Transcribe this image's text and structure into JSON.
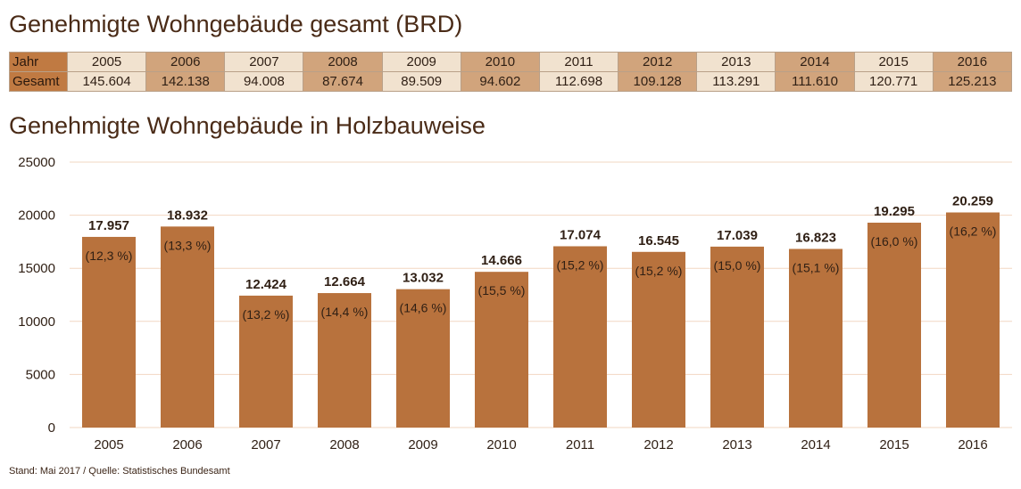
{
  "table": {
    "title": "Genehmigte Wohngebäude gesamt (BRD)",
    "row_label_1": "Jahr",
    "row_label_2": "Gesamt",
    "years": [
      "2005",
      "2006",
      "2007",
      "2008",
      "2009",
      "2010",
      "2011",
      "2012",
      "2013",
      "2014",
      "2015",
      "2016"
    ],
    "totals": [
      "145.604",
      "142.138",
      "94.008",
      "87.674",
      "89.509",
      "94.602",
      "112.698",
      "109.128",
      "113.291",
      "111.610",
      "120.771",
      "125.213"
    ]
  },
  "chart_data": {
    "type": "bar",
    "title": "Genehmigte Wohngebäude in Holzbauweise",
    "categories": [
      "2005",
      "2006",
      "2007",
      "2008",
      "2009",
      "2010",
      "2011",
      "2012",
      "2013",
      "2014",
      "2015",
      "2016"
    ],
    "values": [
      17957,
      18932,
      12424,
      12664,
      13032,
      14666,
      17074,
      16545,
      17039,
      16823,
      19295,
      20259
    ],
    "value_labels": [
      "17.957",
      "18.932",
      "12.424",
      "12.664",
      "13.032",
      "14.666",
      "17.074",
      "16.545",
      "17.039",
      "16.823",
      "19.295",
      "20.259"
    ],
    "share_labels": [
      "(12,3 %)",
      "(13,3 %)",
      "(13,2 %)",
      "(14,4 %)",
      "(14,6 %)",
      "(15,5 %)",
      "(15,2 %)",
      "(15,2 %)",
      "(15,0 %)",
      "(15,1 %)",
      "(16,0 %)",
      "(16,2 %)"
    ],
    "yticks": [
      "0",
      "5000",
      "10000",
      "15000",
      "20000",
      "25000"
    ],
    "ylim": [
      0,
      25000
    ],
    "grid": true,
    "bar_color": "#b8723d",
    "grid_color": "#f2d7c2"
  },
  "footer": "Stand: Mai 2017 / Quelle: Statistisches Bundesamt"
}
